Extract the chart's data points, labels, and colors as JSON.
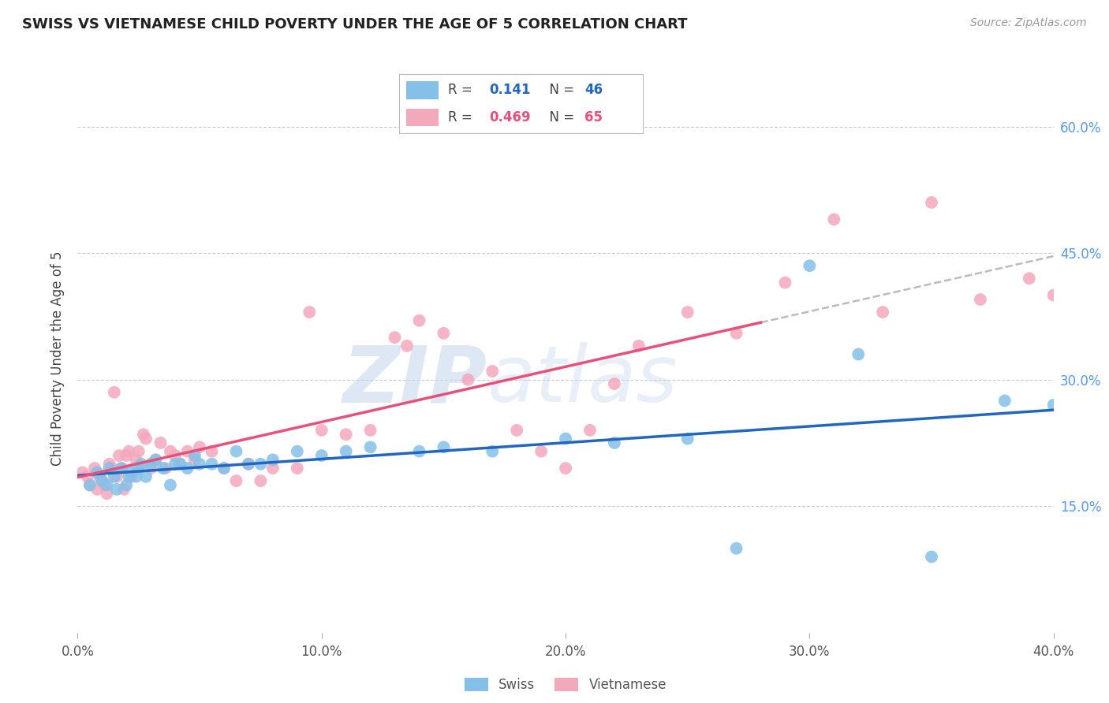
{
  "title": "SWISS VS VIETNAMESE CHILD POVERTY UNDER THE AGE OF 5 CORRELATION CHART",
  "source": "Source: ZipAtlas.com",
  "ylabel": "Child Poverty Under the Age of 5",
  "xlim": [
    0.0,
    0.4
  ],
  "ylim": [
    0.0,
    0.65
  ],
  "xticks": [
    0.0,
    0.1,
    0.2,
    0.3,
    0.4
  ],
  "yticks_right": [
    0.15,
    0.3,
    0.45,
    0.6
  ],
  "ytick_labels_right": [
    "15.0%",
    "30.0%",
    "45.0%",
    "60.0%"
  ],
  "xtick_labels": [
    "0.0%",
    "10.0%",
    "20.0%",
    "30.0%",
    "40.0%"
  ],
  "swiss_color": "#85C0E8",
  "viet_color": "#F4A8BC",
  "swiss_line_color": "#2166C0",
  "viet_line_color": "#E8507A",
  "watermark_zip": "ZIP",
  "watermark_atlas": "atlas",
  "swiss_x": [
    0.005,
    0.008,
    0.01,
    0.012,
    0.013,
    0.015,
    0.016,
    0.018,
    0.02,
    0.021,
    0.022,
    0.024,
    0.025,
    0.026,
    0.028,
    0.03,
    0.032,
    0.035,
    0.038,
    0.04,
    0.042,
    0.045,
    0.048,
    0.05,
    0.055,
    0.06,
    0.065,
    0.07,
    0.075,
    0.08,
    0.09,
    0.1,
    0.11,
    0.12,
    0.14,
    0.15,
    0.17,
    0.2,
    0.22,
    0.25,
    0.27,
    0.3,
    0.32,
    0.35,
    0.38,
    0.4
  ],
  "swiss_y": [
    0.175,
    0.19,
    0.18,
    0.175,
    0.195,
    0.185,
    0.17,
    0.195,
    0.175,
    0.185,
    0.19,
    0.185,
    0.195,
    0.2,
    0.185,
    0.2,
    0.205,
    0.195,
    0.175,
    0.2,
    0.2,
    0.195,
    0.21,
    0.2,
    0.2,
    0.195,
    0.215,
    0.2,
    0.2,
    0.205,
    0.215,
    0.21,
    0.215,
    0.22,
    0.215,
    0.22,
    0.215,
    0.23,
    0.225,
    0.23,
    0.1,
    0.435,
    0.33,
    0.09,
    0.275,
    0.27
  ],
  "viet_x": [
    0.002,
    0.004,
    0.005,
    0.007,
    0.008,
    0.009,
    0.01,
    0.011,
    0.012,
    0.013,
    0.014,
    0.015,
    0.016,
    0.017,
    0.018,
    0.019,
    0.02,
    0.021,
    0.022,
    0.024,
    0.025,
    0.027,
    0.028,
    0.03,
    0.032,
    0.034,
    0.036,
    0.038,
    0.04,
    0.042,
    0.045,
    0.048,
    0.05,
    0.055,
    0.06,
    0.065,
    0.07,
    0.075,
    0.08,
    0.09,
    0.1,
    0.11,
    0.12,
    0.13,
    0.14,
    0.15,
    0.16,
    0.17,
    0.18,
    0.19,
    0.2,
    0.21,
    0.22,
    0.23,
    0.25,
    0.27,
    0.29,
    0.31,
    0.33,
    0.35,
    0.37,
    0.39,
    0.4,
    0.135,
    0.095
  ],
  "viet_y": [
    0.19,
    0.185,
    0.175,
    0.195,
    0.17,
    0.185,
    0.18,
    0.175,
    0.165,
    0.2,
    0.195,
    0.285,
    0.185,
    0.21,
    0.195,
    0.17,
    0.21,
    0.215,
    0.185,
    0.205,
    0.215,
    0.235,
    0.23,
    0.195,
    0.205,
    0.225,
    0.195,
    0.215,
    0.21,
    0.2,
    0.215,
    0.205,
    0.22,
    0.215,
    0.195,
    0.18,
    0.2,
    0.18,
    0.195,
    0.195,
    0.24,
    0.235,
    0.24,
    0.35,
    0.37,
    0.355,
    0.3,
    0.31,
    0.24,
    0.215,
    0.195,
    0.24,
    0.295,
    0.34,
    0.38,
    0.355,
    0.415,
    0.49,
    0.38,
    0.51,
    0.395,
    0.42,
    0.4,
    0.34,
    0.38
  ],
  "background_color": "#FFFFFF",
  "grid_color": "#CCCCCC",
  "swiss_R": "0.141",
  "swiss_N": "46",
  "viet_R": "0.469",
  "viet_N": "65"
}
